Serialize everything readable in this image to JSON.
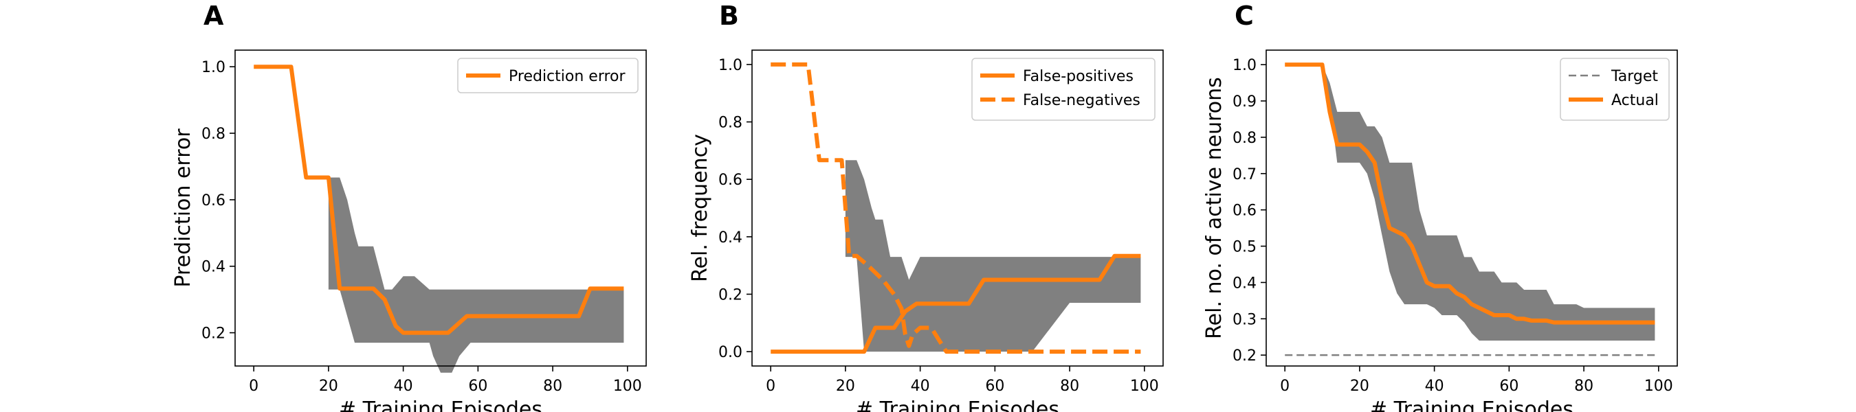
{
  "colors": {
    "orange": "#ff7f0e",
    "band": "#808080",
    "target": "#808080"
  },
  "chart_data": [
    {
      "panel": "A",
      "type": "line",
      "xlabel": "# Training Episodes",
      "ylabel": "Prediction error",
      "xlim": [
        -5,
        105
      ],
      "ylim": [
        0.1,
        1.05
      ],
      "xticks": [
        0,
        20,
        40,
        60,
        80,
        100
      ],
      "yticks": [
        0.2,
        0.4,
        0.6,
        0.8,
        1.0
      ],
      "xtick_labels": [
        "0",
        "20",
        "40",
        "60",
        "80",
        "100"
      ],
      "ytick_labels": [
        "0.2",
        "0.4",
        "0.6",
        "0.8",
        "1.0"
      ],
      "legend_position": "top-right",
      "band": {
        "x": [
          20,
          23,
          25,
          27,
          28,
          30,
          32,
          35,
          37,
          40,
          43,
          47,
          48,
          50,
          53,
          55,
          58,
          60,
          65,
          70,
          75,
          80,
          85,
          90,
          95,
          99
        ],
        "upper": [
          0.667,
          0.667,
          0.6,
          0.5,
          0.46,
          0.46,
          0.46,
          0.33,
          0.33,
          0.37,
          0.37,
          0.33,
          0.33,
          0.33,
          0.33,
          0.33,
          0.33,
          0.33,
          0.33,
          0.33,
          0.33,
          0.33,
          0.33,
          0.33,
          0.33,
          0.33
        ],
        "lower": [
          0.33,
          0.33,
          0.25,
          0.17,
          0.17,
          0.17,
          0.17,
          0.17,
          0.17,
          0.17,
          0.17,
          0.17,
          0.13,
          0.08,
          0.08,
          0.13,
          0.17,
          0.17,
          0.17,
          0.17,
          0.17,
          0.17,
          0.17,
          0.17,
          0.17,
          0.17
        ]
      },
      "series": [
        {
          "name": "Prediction error",
          "style": "solid",
          "x": [
            0,
            10,
            14,
            20,
            23,
            32,
            35,
            38,
            40,
            52,
            57,
            87,
            90,
            99
          ],
          "y": [
            1.0,
            1.0,
            0.667,
            0.667,
            0.333,
            0.333,
            0.3,
            0.22,
            0.2,
            0.2,
            0.25,
            0.25,
            0.333,
            0.333
          ]
        }
      ]
    },
    {
      "panel": "B",
      "type": "line",
      "xlabel": "# Training Episodes",
      "ylabel": "Rel. frequency",
      "xlim": [
        -5,
        105
      ],
      "ylim": [
        -0.05,
        1.05
      ],
      "xticks": [
        0,
        20,
        40,
        60,
        80,
        100
      ],
      "yticks": [
        0.0,
        0.2,
        0.4,
        0.6,
        0.8,
        1.0
      ],
      "xtick_labels": [
        "0",
        "20",
        "40",
        "60",
        "80",
        "100"
      ],
      "ytick_labels": [
        "0.0",
        "0.2",
        "0.4",
        "0.6",
        "0.8",
        "1.0"
      ],
      "legend_position": "top-right",
      "band": {
        "x": [
          20,
          23,
          25,
          27,
          28,
          30,
          32,
          35,
          37,
          40,
          45,
          50,
          55,
          60,
          63,
          65,
          70,
          80,
          90,
          99
        ],
        "upper": [
          0.667,
          0.667,
          0.6,
          0.5,
          0.46,
          0.46,
          0.33,
          0.33,
          0.25,
          0.33,
          0.33,
          0.33,
          0.33,
          0.33,
          0.33,
          0.33,
          0.33,
          0.33,
          0.33,
          0.33
        ],
        "lower": [
          0.33,
          0.33,
          0.0,
          0.0,
          0.0,
          0.0,
          0.0,
          0.0,
          0.0,
          0.0,
          0.0,
          0.0,
          0.0,
          0.0,
          0.0,
          0.0,
          0.0,
          0.17,
          0.17,
          0.17
        ]
      },
      "series": [
        {
          "name": "False-positives",
          "style": "solid",
          "x": [
            0,
            25,
            28,
            33,
            36,
            39,
            45,
            53,
            57,
            88,
            92,
            99
          ],
          "y": [
            0.0,
            0.0,
            0.083,
            0.083,
            0.14,
            0.167,
            0.167,
            0.167,
            0.25,
            0.25,
            0.333,
            0.333
          ]
        },
        {
          "name": "False-negatives",
          "style": "dashed",
          "x": [
            0,
            10,
            13,
            19,
            21,
            23,
            26,
            30,
            33,
            35,
            36,
            37,
            38,
            40,
            43,
            46,
            47,
            50,
            99
          ],
          "y": [
            1.0,
            1.0,
            0.667,
            0.667,
            0.333,
            0.333,
            0.3,
            0.25,
            0.2,
            0.15,
            0.06,
            0.02,
            0.06,
            0.083,
            0.083,
            0.02,
            0.0,
            0.0,
            0.0
          ]
        }
      ]
    },
    {
      "panel": "C",
      "type": "line",
      "xlabel": "# Training Episodes",
      "ylabel": "Rel. no. of active neurons",
      "xlim": [
        -5,
        105
      ],
      "ylim": [
        0.17,
        1.04
      ],
      "xticks": [
        0,
        20,
        40,
        60,
        80,
        100
      ],
      "yticks": [
        0.2,
        0.3,
        0.4,
        0.5,
        0.6,
        0.7,
        0.8,
        0.9,
        1.0
      ],
      "xtick_labels": [
        "0",
        "20",
        "40",
        "60",
        "80",
        "100"
      ],
      "ytick_labels": [
        "0.2",
        "0.3",
        "0.4",
        "0.5",
        "0.6",
        "0.7",
        "0.8",
        "0.9",
        "1.0"
      ],
      "legend_position": "top-right",
      "band": {
        "x": [
          10,
          12,
          14,
          16,
          18,
          20,
          22,
          24,
          26,
          28,
          30,
          32,
          34,
          36,
          38,
          40,
          42,
          44,
          46,
          48,
          50,
          52,
          54,
          56,
          58,
          60,
          62,
          64,
          66,
          68,
          70,
          72,
          74,
          76,
          78,
          80,
          85,
          90,
          95,
          99
        ],
        "upper": [
          1.0,
          0.95,
          0.87,
          0.87,
          0.87,
          0.87,
          0.83,
          0.83,
          0.8,
          0.73,
          0.73,
          0.73,
          0.73,
          0.6,
          0.53,
          0.53,
          0.53,
          0.53,
          0.53,
          0.47,
          0.47,
          0.43,
          0.43,
          0.43,
          0.4,
          0.4,
          0.4,
          0.38,
          0.38,
          0.38,
          0.38,
          0.34,
          0.34,
          0.34,
          0.34,
          0.33,
          0.33,
          0.33,
          0.33,
          0.33
        ],
        "lower": [
          1.0,
          0.9,
          0.73,
          0.73,
          0.73,
          0.73,
          0.7,
          0.63,
          0.53,
          0.43,
          0.37,
          0.34,
          0.34,
          0.34,
          0.34,
          0.33,
          0.31,
          0.31,
          0.31,
          0.29,
          0.26,
          0.24,
          0.24,
          0.24,
          0.24,
          0.24,
          0.24,
          0.24,
          0.24,
          0.24,
          0.24,
          0.24,
          0.24,
          0.24,
          0.24,
          0.24,
          0.24,
          0.24,
          0.24,
          0.24
        ]
      },
      "series": [
        {
          "name": "Target",
          "style": "dashed-thin",
          "x": [
            0,
            99
          ],
          "y": [
            0.2,
            0.2
          ]
        },
        {
          "name": "Actual",
          "style": "solid",
          "x": [
            0,
            10,
            12,
            14,
            16,
            18,
            20,
            22,
            24,
            26,
            28,
            30,
            32,
            34,
            36,
            38,
            40,
            42,
            44,
            46,
            48,
            50,
            54,
            56,
            60,
            62,
            64,
            66,
            70,
            72,
            74,
            80,
            90,
            99
          ],
          "y": [
            1.0,
            1.0,
            0.87,
            0.78,
            0.78,
            0.78,
            0.78,
            0.76,
            0.73,
            0.63,
            0.55,
            0.54,
            0.53,
            0.5,
            0.45,
            0.4,
            0.39,
            0.39,
            0.39,
            0.37,
            0.36,
            0.34,
            0.32,
            0.31,
            0.31,
            0.3,
            0.3,
            0.295,
            0.295,
            0.29,
            0.29,
            0.29,
            0.29,
            0.29
          ]
        }
      ]
    }
  ]
}
